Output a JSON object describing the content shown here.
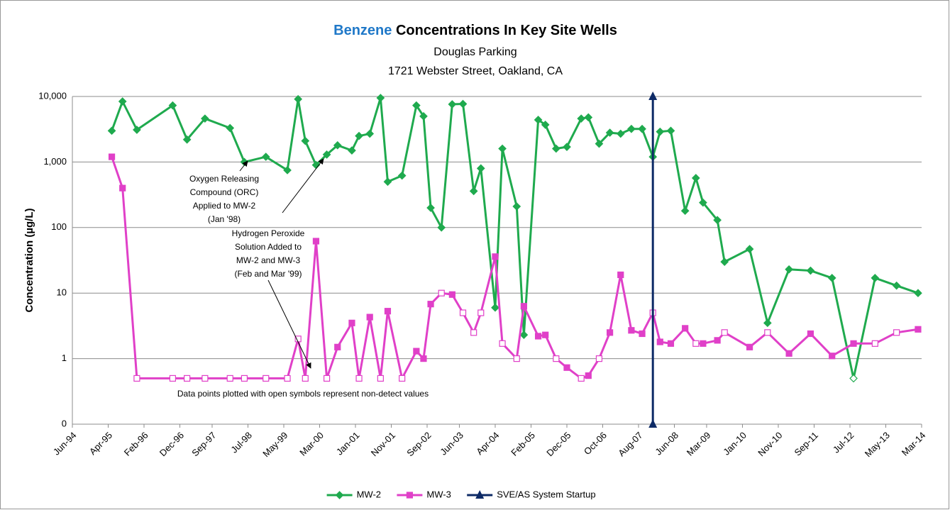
{
  "chart_data": {
    "type": "line",
    "title_highlight": "Benzene",
    "title": "Concentrations In Key Site Wells",
    "subtitle": [
      "Douglas Parking",
      "1721 Webster Street, Oakland, CA"
    ],
    "ylabel": "Concentration (µg/L)",
    "log_y": true,
    "grid": true,
    "legend": "bottom",
    "xlim": [
      "1994-06",
      "2014-03"
    ],
    "xticks": [
      {
        "value": "1994-06",
        "label": "Jun-94"
      },
      {
        "value": "1995-04",
        "label": "Apr-95"
      },
      {
        "value": "1996-02",
        "label": "Feb-96"
      },
      {
        "value": "1996-12",
        "label": "Dec-96"
      },
      {
        "value": "1997-09",
        "label": "Sep-97"
      },
      {
        "value": "1998-07",
        "label": "Jul-98"
      },
      {
        "value": "1999-05",
        "label": "May-99"
      },
      {
        "value": "2000-03",
        "label": "Mar-00"
      },
      {
        "value": "2001-01",
        "label": "Jan-01"
      },
      {
        "value": "2001-11",
        "label": "Nov-01"
      },
      {
        "value": "2002-09",
        "label": "Sep-02"
      },
      {
        "value": "2003-06",
        "label": "Jun-03"
      },
      {
        "value": "2004-04",
        "label": "Apr-04"
      },
      {
        "value": "2005-02",
        "label": "Feb-05"
      },
      {
        "value": "2005-12",
        "label": "Dec-05"
      },
      {
        "value": "2006-10",
        "label": "Oct-06"
      },
      {
        "value": "2007-08",
        "label": "Aug-07"
      },
      {
        "value": "2008-06",
        "label": "Jun-08"
      },
      {
        "value": "2009-03",
        "label": "Mar-09"
      },
      {
        "value": "2010-01",
        "label": "Jan-10"
      },
      {
        "value": "2010-11",
        "label": "Nov-10"
      },
      {
        "value": "2011-09",
        "label": "Sep-11"
      },
      {
        "value": "2012-07",
        "label": "Jul-12"
      },
      {
        "value": "2013-05",
        "label": "May-13"
      },
      {
        "value": "2014-03",
        "label": "Mar-14"
      }
    ],
    "ylim": [
      0.1,
      10000
    ],
    "yticks": [
      {
        "value": 0.1,
        "label": "0"
      },
      1,
      10,
      100,
      {
        "value": 1000,
        "label": "1,000"
      },
      {
        "value": 10000,
        "label": "10,000"
      }
    ],
    "series": [
      {
        "name": "MW-2",
        "color": "#1faa4e",
        "marker": "diamond",
        "x": [
          "1995-05",
          "1995-08",
          "1995-12",
          "1996-10",
          "1997-02",
          "1997-07",
          "1998-02",
          "1998-06",
          "1998-12",
          "1999-06",
          "1999-09",
          "1999-11",
          "2000-02",
          "2000-05",
          "2000-08",
          "2000-12",
          "2001-02",
          "2001-05",
          "2001-08",
          "2001-10",
          "2002-02",
          "2002-06",
          "2002-08",
          "2002-10",
          "2003-01",
          "2003-04",
          "2003-07",
          "2003-10",
          "2003-12",
          "2004-04",
          "2004-06",
          "2004-10",
          "2004-12",
          "2005-04",
          "2005-06",
          "2005-09",
          "2005-12",
          "2006-04",
          "2006-06",
          "2006-09",
          "2006-12",
          "2007-03",
          "2007-06",
          "2007-09",
          "2007-12",
          "2008-02",
          "2008-05",
          "2008-09",
          "2008-12",
          "2009-02",
          "2009-06",
          "2009-08",
          "2010-03",
          "2010-08",
          "2011-02",
          "2011-08",
          "2012-02",
          "2012-08",
          "2013-02",
          "2013-08",
          "2014-02"
        ],
        "values": [
          3000,
          8400,
          3100,
          7300,
          2200,
          4600,
          3300,
          1000,
          1200,
          750,
          9100,
          2100,
          900,
          1300,
          1800,
          1500,
          2500,
          2700,
          9500,
          500,
          620,
          7300,
          5000,
          200,
          100,
          7600,
          7700,
          360,
          800,
          6,
          1600,
          210,
          2.3,
          4400,
          3700,
          1600,
          1700,
          4600,
          4800,
          1900,
          2800,
          2700,
          3200,
          3200,
          1200,
          2900,
          3000,
          180,
          570,
          240,
          130,
          30,
          47,
          3.5,
          23,
          22,
          17,
          0.5,
          17,
          13,
          10
        ],
        "open": [
          false,
          false,
          false,
          false,
          false,
          false,
          false,
          false,
          false,
          false,
          false,
          false,
          false,
          false,
          false,
          false,
          false,
          false,
          false,
          false,
          false,
          false,
          false,
          false,
          false,
          false,
          false,
          false,
          false,
          false,
          false,
          false,
          false,
          false,
          false,
          false,
          false,
          false,
          false,
          false,
          false,
          false,
          false,
          false,
          false,
          false,
          false,
          false,
          false,
          false,
          false,
          false,
          false,
          false,
          false,
          false,
          false,
          true,
          false,
          false,
          false
        ]
      },
      {
        "name": "MW-3",
        "color": "#e040c8",
        "marker": "square",
        "x": [
          "1995-05",
          "1995-08",
          "1995-12",
          "1996-10",
          "1997-02",
          "1997-07",
          "1998-02",
          "1998-06",
          "1998-12",
          "1999-06",
          "1999-09",
          "1999-11",
          "2000-02",
          "2000-05",
          "2000-08",
          "2000-12",
          "2001-02",
          "2001-05",
          "2001-08",
          "2001-10",
          "2002-02",
          "2002-06",
          "2002-08",
          "2002-10",
          "2003-01",
          "2003-04",
          "2003-07",
          "2003-10",
          "2003-12",
          "2004-04",
          "2004-06",
          "2004-10",
          "2004-12",
          "2005-04",
          "2005-06",
          "2005-09",
          "2005-12",
          "2006-04",
          "2006-06",
          "2006-09",
          "2006-12",
          "2007-03",
          "2007-06",
          "2007-09",
          "2007-12",
          "2008-02",
          "2008-05",
          "2008-09",
          "2008-12",
          "2009-02",
          "2009-06",
          "2009-08",
          "2010-03",
          "2010-08",
          "2011-02",
          "2011-08",
          "2012-02",
          "2012-08",
          "2013-02",
          "2013-08",
          "2014-02"
        ],
        "values": [
          1200,
          400,
          0.5,
          0.5,
          0.5,
          0.5,
          0.5,
          0.5,
          0.5,
          0.5,
          2,
          0.5,
          62,
          0.5,
          1.5,
          3.5,
          0.5,
          4.3,
          0.5,
          5.3,
          0.5,
          1.3,
          1.0,
          6.8,
          10,
          9.5,
          5,
          2.5,
          5,
          36,
          1.7,
          1.0,
          6.3,
          2.2,
          2.3,
          1.0,
          0.73,
          0.5,
          0.55,
          1.0,
          2.5,
          19,
          2.7,
          2.4,
          5,
          1.8,
          1.7,
          2.9,
          1.7,
          1.7,
          1.9,
          2.5,
          1.5,
          2.5,
          1.2,
          2.4,
          1.1,
          1.7,
          1.7,
          2.5,
          2.8
        ],
        "open": [
          false,
          false,
          true,
          true,
          true,
          true,
          true,
          true,
          true,
          true,
          true,
          true,
          false,
          true,
          false,
          false,
          true,
          false,
          true,
          false,
          true,
          false,
          false,
          false,
          true,
          false,
          true,
          true,
          true,
          false,
          true,
          true,
          false,
          false,
          false,
          true,
          false,
          true,
          false,
          true,
          false,
          false,
          false,
          false,
          true,
          false,
          false,
          false,
          true,
          false,
          false,
          true,
          false,
          true,
          false,
          false,
          false,
          false,
          true,
          true,
          false
        ]
      },
      {
        "name": "SVE/AS System Startup",
        "color": "#0d2a66",
        "marker": "triangle",
        "x": [
          "2007-12",
          "2007-12"
        ],
        "values": [
          0.1,
          10000
        ]
      }
    ],
    "annotations": [
      {
        "text": [
          "Oxygen Releasing",
          "Compound (ORC)",
          "Applied  to MW-2",
          "(Jan '98)"
        ]
      },
      {
        "text": [
          "Hydrogen Peroxide",
          "Solution Added to",
          "MW-2 and MW-3",
          "(Feb and Mar '99)"
        ]
      },
      {
        "text": [
          "Data points plotted with open symbols represent non-detect values"
        ]
      }
    ]
  }
}
